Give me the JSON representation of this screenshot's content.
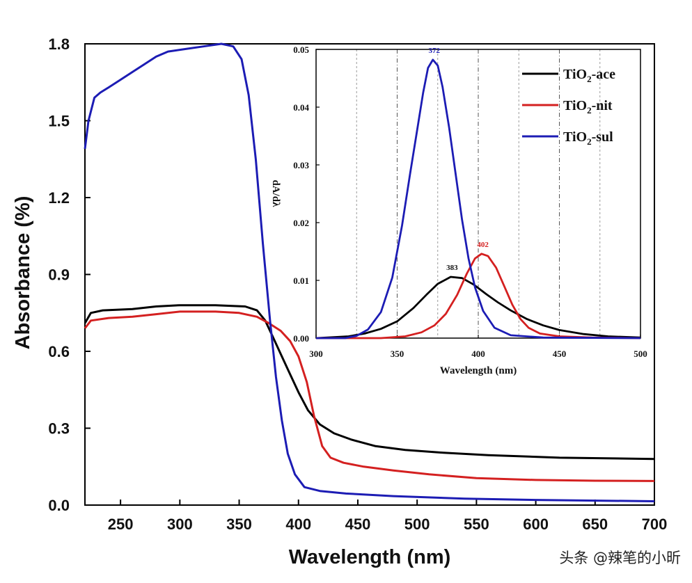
{
  "chart_data": [
    {
      "id": "main",
      "type": "line",
      "xlabel": "Wavelength (nm)",
      "ylabel": "Absorbance (%)",
      "xlim": [
        220,
        700
      ],
      "ylim": [
        0,
        1.8
      ],
      "xticks": [
        250,
        300,
        350,
        400,
        450,
        500,
        550,
        600,
        650,
        700
      ],
      "yticks": [
        0.0,
        0.3,
        0.6,
        0.9,
        1.2,
        1.5,
        1.8
      ],
      "yticklabels": [
        "0.0",
        "0.3",
        "0.6",
        "0.9",
        "1.2",
        "1.5",
        "1.8"
      ],
      "grid": false,
      "series": [
        {
          "name": "TiO2-ace",
          "color": "#000000",
          "points": [
            [
              220,
              0.71
            ],
            [
              225,
              0.75
            ],
            [
              235,
              0.76
            ],
            [
              260,
              0.765
            ],
            [
              280,
              0.775
            ],
            [
              300,
              0.78
            ],
            [
              330,
              0.78
            ],
            [
              355,
              0.775
            ],
            [
              365,
              0.76
            ],
            [
              372,
              0.72
            ],
            [
              378,
              0.66
            ],
            [
              385,
              0.59
            ],
            [
              392,
              0.52
            ],
            [
              400,
              0.44
            ],
            [
              408,
              0.37
            ],
            [
              418,
              0.315
            ],
            [
              430,
              0.28
            ],
            [
              445,
              0.255
            ],
            [
              465,
              0.23
            ],
            [
              490,
              0.215
            ],
            [
              520,
              0.205
            ],
            [
              560,
              0.195
            ],
            [
              620,
              0.185
            ],
            [
              700,
              0.18
            ]
          ]
        },
        {
          "name": "TiO2-nit",
          "color": "#d42020",
          "points": [
            [
              220,
              0.69
            ],
            [
              225,
              0.72
            ],
            [
              240,
              0.73
            ],
            [
              260,
              0.735
            ],
            [
              280,
              0.745
            ],
            [
              300,
              0.755
            ],
            [
              330,
              0.755
            ],
            [
              350,
              0.75
            ],
            [
              365,
              0.735
            ],
            [
              375,
              0.71
            ],
            [
              385,
              0.68
            ],
            [
              393,
              0.64
            ],
            [
              400,
              0.58
            ],
            [
              407,
              0.48
            ],
            [
              413,
              0.35
            ],
            [
              420,
              0.23
            ],
            [
              427,
              0.185
            ],
            [
              438,
              0.165
            ],
            [
              455,
              0.15
            ],
            [
              480,
              0.135
            ],
            [
              510,
              0.12
            ],
            [
              550,
              0.105
            ],
            [
              600,
              0.098
            ],
            [
              650,
              0.095
            ],
            [
              700,
              0.094
            ]
          ]
        },
        {
          "name": "TiO2-sul",
          "color": "#1c1cb4",
          "points": [
            [
              220,
              1.39
            ],
            [
              223,
              1.5
            ],
            [
              228,
              1.59
            ],
            [
              233,
              1.61
            ],
            [
              240,
              1.63
            ],
            [
              250,
              1.66
            ],
            [
              260,
              1.69
            ],
            [
              270,
              1.72
            ],
            [
              280,
              1.75
            ],
            [
              290,
              1.77
            ],
            [
              305,
              1.78
            ],
            [
              320,
              1.79
            ],
            [
              335,
              1.8
            ],
            [
              345,
              1.79
            ],
            [
              352,
              1.74
            ],
            [
              358,
              1.6
            ],
            [
              364,
              1.35
            ],
            [
              370,
              1.02
            ],
            [
              376,
              0.72
            ],
            [
              381,
              0.5
            ],
            [
              386,
              0.33
            ],
            [
              391,
              0.2
            ],
            [
              397,
              0.12
            ],
            [
              405,
              0.07
            ],
            [
              418,
              0.055
            ],
            [
              440,
              0.045
            ],
            [
              480,
              0.035
            ],
            [
              540,
              0.025
            ],
            [
              600,
              0.02
            ],
            [
              700,
              0.015
            ]
          ]
        }
      ]
    },
    {
      "id": "inset",
      "type": "line",
      "xlabel": "Wavelength (nm)",
      "ylabel": "dA/dλ",
      "xlim": [
        300,
        500
      ],
      "ylim": [
        0,
        0.05
      ],
      "xticks": [
        300,
        350,
        400,
        450,
        500
      ],
      "yticks": [
        0.0,
        0.01,
        0.02,
        0.03,
        0.04,
        0.05
      ],
      "yticklabels": [
        "0.00",
        "0.01",
        "0.02",
        "0.03",
        "0.04",
        "0.05"
      ],
      "vlines": [
        325,
        350,
        375,
        400,
        425,
        450,
        475
      ],
      "grid": true,
      "legend_position": "top-right",
      "series": [
        {
          "name": "TiO2-ace",
          "color": "#000000",
          "peak": {
            "x": 383,
            "y": 0.0106,
            "label": "383"
          },
          "points": [
            [
              300,
              0
            ],
            [
              320,
              0.0003
            ],
            [
              330,
              0.0008
            ],
            [
              340,
              0.0016
            ],
            [
              350,
              0.0029
            ],
            [
              360,
              0.0052
            ],
            [
              368,
              0.0075
            ],
            [
              375,
              0.0094
            ],
            [
              383,
              0.0106
            ],
            [
              390,
              0.0104
            ],
            [
              397,
              0.0093
            ],
            [
              405,
              0.0076
            ],
            [
              412,
              0.0062
            ],
            [
              420,
              0.0048
            ],
            [
              430,
              0.0033
            ],
            [
              440,
              0.0022
            ],
            [
              450,
              0.0014
            ],
            [
              465,
              0.0007
            ],
            [
              480,
              0.0003
            ],
            [
              500,
              0.0001
            ]
          ]
        },
        {
          "name": "TiO2-nit",
          "color": "#d42020",
          "peak": {
            "x": 402,
            "y": 0.0146,
            "label": "402"
          },
          "points": [
            [
              300,
              0
            ],
            [
              340,
              0
            ],
            [
              355,
              0.0003
            ],
            [
              365,
              0.001
            ],
            [
              373,
              0.0022
            ],
            [
              380,
              0.0042
            ],
            [
              387,
              0.0075
            ],
            [
              393,
              0.0112
            ],
            [
              398,
              0.0138
            ],
            [
              402,
              0.0146
            ],
            [
              406,
              0.0142
            ],
            [
              411,
              0.0122
            ],
            [
              416,
              0.009
            ],
            [
              421,
              0.0058
            ],
            [
              426,
              0.0033
            ],
            [
              431,
              0.0018
            ],
            [
              438,
              0.0008
            ],
            [
              450,
              0.0003
            ],
            [
              470,
              0.0001
            ],
            [
              500,
              0
            ]
          ]
        },
        {
          "name": "TiO2-sul",
          "color": "#1c1cb4",
          "peak": {
            "x": 372,
            "y": 0.0482,
            "label": "372"
          },
          "points": [
            [
              300,
              0
            ],
            [
              318,
              0
            ],
            [
              325,
              0.0004
            ],
            [
              332,
              0.0015
            ],
            [
              340,
              0.0045
            ],
            [
              347,
              0.0105
            ],
            [
              353,
              0.0195
            ],
            [
              358,
              0.0285
            ],
            [
              362,
              0.0355
            ],
            [
              366,
              0.0425
            ],
            [
              369,
              0.0468
            ],
            [
              372,
              0.0482
            ],
            [
              375,
              0.0472
            ],
            [
              378,
              0.0435
            ],
            [
              382,
              0.0365
            ],
            [
              386,
              0.0285
            ],
            [
              390,
              0.0205
            ],
            [
              394,
              0.0138
            ],
            [
              398,
              0.0088
            ],
            [
              403,
              0.0047
            ],
            [
              410,
              0.0018
            ],
            [
              420,
              0.0005
            ],
            [
              440,
              0.0001
            ],
            [
              500,
              0
            ]
          ]
        }
      ]
    }
  ],
  "watermark": "头条 @辣笔的小昕"
}
